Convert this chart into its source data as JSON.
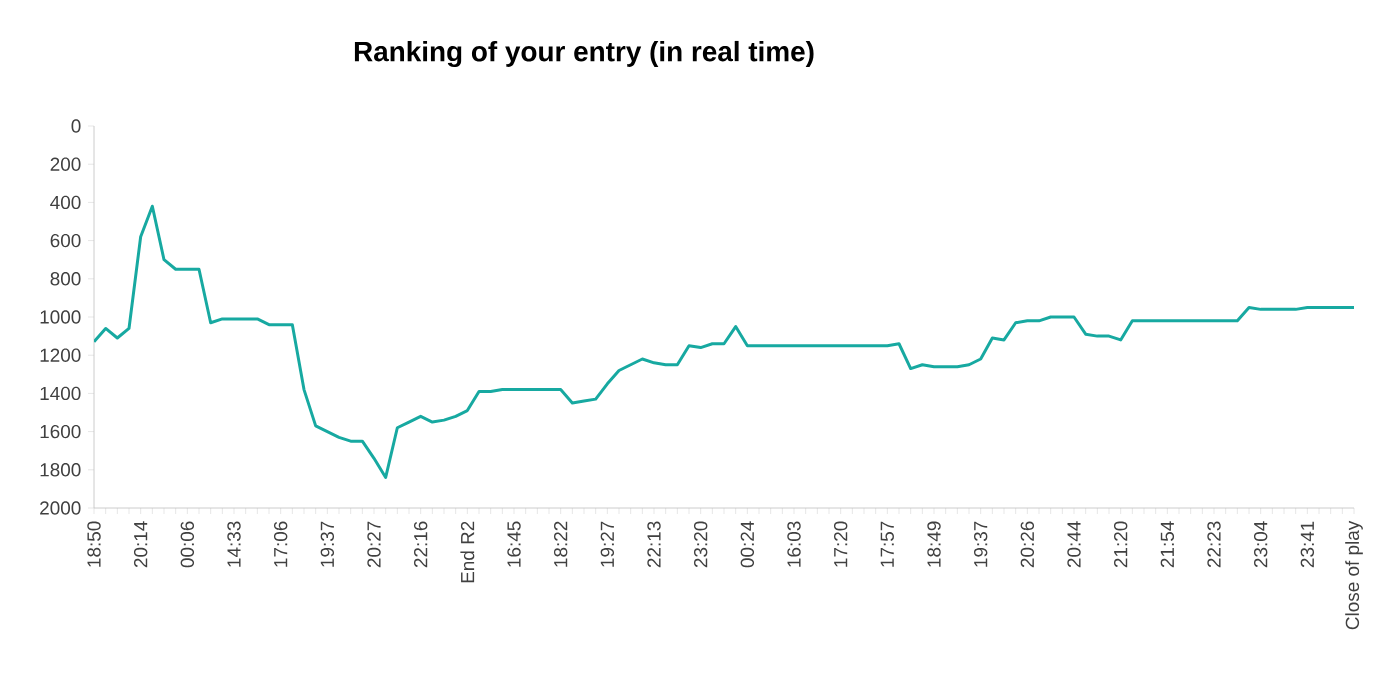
{
  "chart_data": {
    "type": "line",
    "title": "Ranking of your entry (in real time)",
    "categories": [
      "18:50",
      null,
      null,
      null,
      "20:14",
      null,
      null,
      null,
      "00:06",
      null,
      null,
      null,
      "14:33",
      null,
      null,
      null,
      "17:06",
      null,
      null,
      null,
      "19:37",
      null,
      null,
      null,
      "20:27",
      null,
      null,
      null,
      "22:16",
      null,
      null,
      null,
      "End R2",
      null,
      null,
      null,
      "16:45",
      null,
      null,
      null,
      "18:22",
      null,
      null,
      null,
      "19:27",
      null,
      null,
      null,
      "22:13",
      null,
      null,
      null,
      "23:20",
      null,
      null,
      null,
      "00:24",
      null,
      null,
      null,
      "16:03",
      null,
      null,
      null,
      "17:20",
      null,
      null,
      null,
      "17:57",
      null,
      null,
      null,
      "18:49",
      null,
      null,
      null,
      "19:37",
      null,
      null,
      null,
      "20:26",
      null,
      null,
      null,
      "20:44",
      null,
      null,
      null,
      "21:20",
      null,
      null,
      null,
      "21:54",
      null,
      null,
      null,
      "22:23",
      null,
      null,
      null,
      "23:04",
      null,
      null,
      null,
      "23:41",
      null,
      null,
      null,
      "Close of play"
    ],
    "values": [
      1130,
      1060,
      1110,
      1060,
      580,
      420,
      700,
      750,
      750,
      750,
      1030,
      1010,
      1010,
      1010,
      1010,
      1040,
      1040,
      1040,
      1380,
      1570,
      1600,
      1630,
      1650,
      1650,
      1740,
      1840,
      1580,
      1550,
      1520,
      1550,
      1540,
      1520,
      1490,
      1390,
      1390,
      1380,
      1380,
      1380,
      1380,
      1380,
      1380,
      1450,
      1440,
      1430,
      1350,
      1280,
      1250,
      1220,
      1240,
      1250,
      1250,
      1150,
      1160,
      1140,
      1140,
      1050,
      1150,
      1150,
      1150,
      1150,
      1150,
      1150,
      1150,
      1150,
      1150,
      1150,
      1150,
      1150,
      1150,
      1140,
      1270,
      1250,
      1260,
      1260,
      1260,
      1250,
      1220,
      1110,
      1120,
      1030,
      1020,
      1020,
      1000,
      1000,
      1000,
      1090,
      1100,
      1100,
      1120,
      1020,
      1020,
      1020,
      1020,
      1020,
      1020,
      1020,
      1020,
      1020,
      1020,
      950,
      960,
      960,
      960,
      960,
      950,
      950,
      950,
      950,
      950
    ],
    "color": "#17a9a1",
    "ylim": [
      2000,
      0
    ],
    "yticks": [
      0,
      200,
      400,
      600,
      800,
      1000,
      1200,
      1400,
      1600,
      1800,
      2000
    ],
    "grid": false,
    "marker": "none",
    "line_style": "solid"
  }
}
